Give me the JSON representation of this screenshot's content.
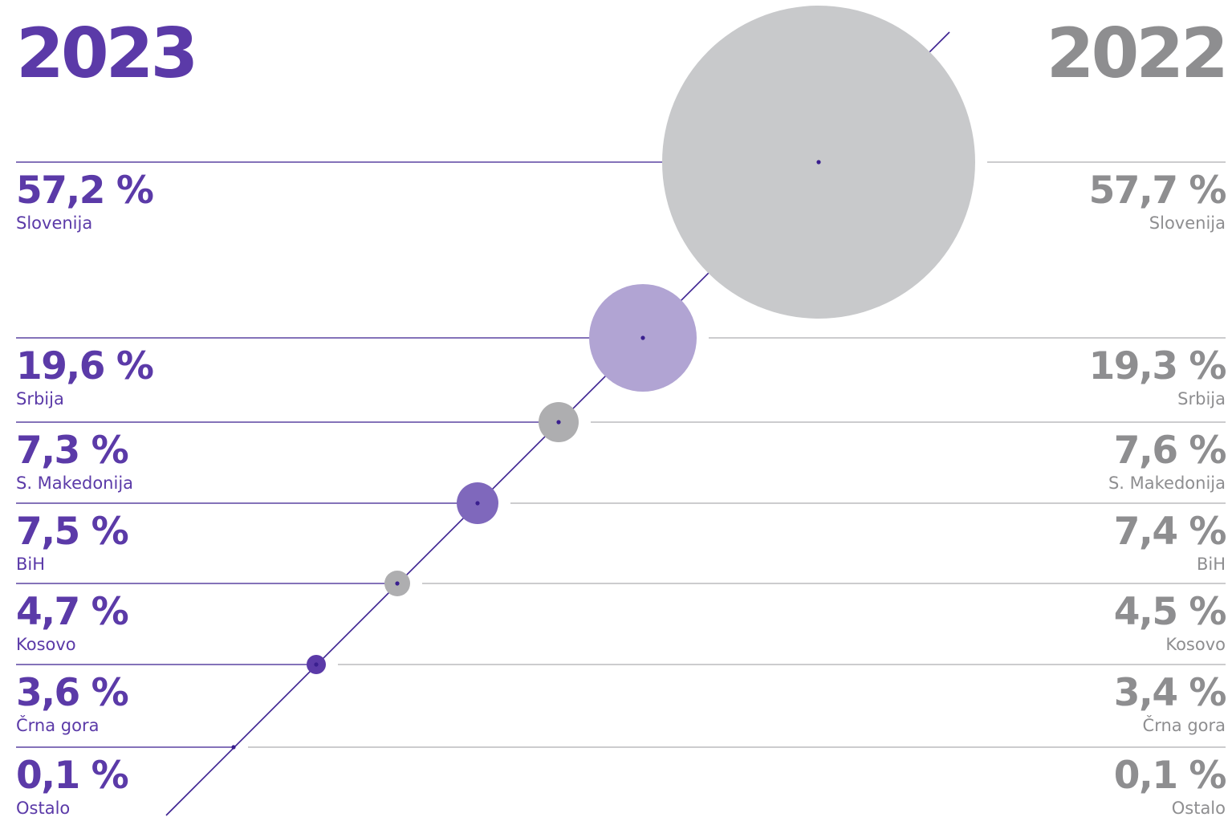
{
  "chart_data": {
    "type": "bubble",
    "years": {
      "left": "2023",
      "right": "2022"
    },
    "colors": {
      "purple": "#5b3aa8",
      "purple_light": "#b1a4d3",
      "purple_mid": "#7f68bc",
      "gray_text": "#8e8e90",
      "gray_bubble": "#c8c9cb",
      "gray_mid": "#aeaeb0",
      "line": "#3a1f8f"
    },
    "rows": [
      {
        "name": "Slovenija",
        "value_2023": 57.2,
        "value_2022": 57.7,
        "label_2023": "57,2 %",
        "label_2022": "57,7 %"
      },
      {
        "name": "Srbija",
        "value_2023": 19.6,
        "value_2022": 19.3,
        "label_2023": "19,6 %",
        "label_2022": "19,3 %"
      },
      {
        "name": "S. Makedonija",
        "value_2023": 7.3,
        "value_2022": 7.6,
        "label_2023": "7,3 %",
        "label_2022": "7,6 %"
      },
      {
        "name": "BiH",
        "value_2023": 7.5,
        "value_2022": 7.4,
        "label_2023": "7,5 %",
        "label_2022": "7,4 %"
      },
      {
        "name": "Kosovo",
        "value_2023": 4.7,
        "value_2022": 4.5,
        "label_2023": "4,7 %",
        "label_2022": "4,5 %"
      },
      {
        "name": "Črna gora",
        "value_2023": 3.6,
        "value_2022": 3.4,
        "label_2023": "3,6 %",
        "label_2022": "3,4 %"
      },
      {
        "name": "Ostalo",
        "value_2023": 0.1,
        "value_2022": 0.1,
        "label_2023": "0,1 %",
        "label_2022": "0,1 %"
      }
    ],
    "bubble_colors": [
      "gray_bubble",
      "purple_light",
      "gray_mid",
      "purple_mid",
      "gray_mid",
      "purple",
      "purple"
    ]
  }
}
